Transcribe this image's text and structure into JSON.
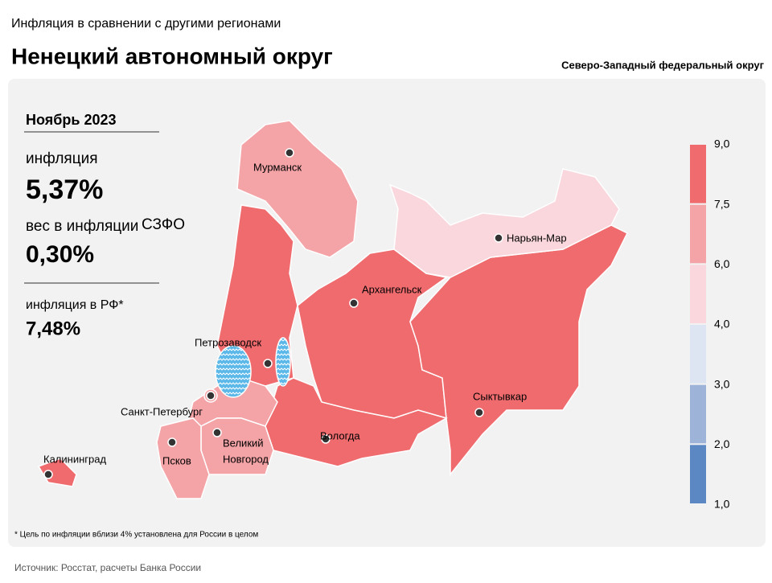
{
  "header": {
    "kicker": "Инфляция в сравнении с другими регионами",
    "title": "Ненецкий автономный округ",
    "district": "Северо-Западный федеральный округ"
  },
  "panel": {
    "period": "Ноябрь 2023",
    "inflation_label": "инфляция",
    "inflation_value": "5,37%",
    "weight_label": "вес в инфляции",
    "weight_district": "СЗФО",
    "weight_value": "0,30%",
    "rf_label": "инфляция в РФ*",
    "rf_value": "7,48%"
  },
  "cities": [
    {
      "label": "Мурманск"
    },
    {
      "label": "Нарьян-Мар"
    },
    {
      "label": "Архангельск"
    },
    {
      "label": "Петрозаводск"
    },
    {
      "label": "Санкт-Петербург"
    },
    {
      "label": "Сыктывкар"
    },
    {
      "label": "Вологда"
    },
    {
      "label": "Великий"
    },
    {
      "label": "Новгород"
    },
    {
      "label": "Псков"
    },
    {
      "label": "Калининград"
    }
  ],
  "legend": {
    "ticks": [
      {
        "value": 9,
        "label": "9,0"
      },
      {
        "value": 7.5,
        "label": "7,5"
      },
      {
        "value": 6,
        "label": "6,0"
      },
      {
        "value": 4,
        "label": "4,0"
      },
      {
        "value": 3,
        "label": "3,0"
      },
      {
        "value": 2,
        "label": "2,0"
      },
      {
        "value": 1,
        "label": "1,0"
      }
    ],
    "colors": [
      "#ef6b6e",
      "#f4a3a6",
      "#f9d7dc",
      "#dde5f3",
      "#9db4d8",
      "#5b87c2"
    ]
  },
  "footnote": "* Цель по инфляции вблизи 4% установлена для России в целом",
  "source": "Источник: Росстат, расчеты Банка России"
}
